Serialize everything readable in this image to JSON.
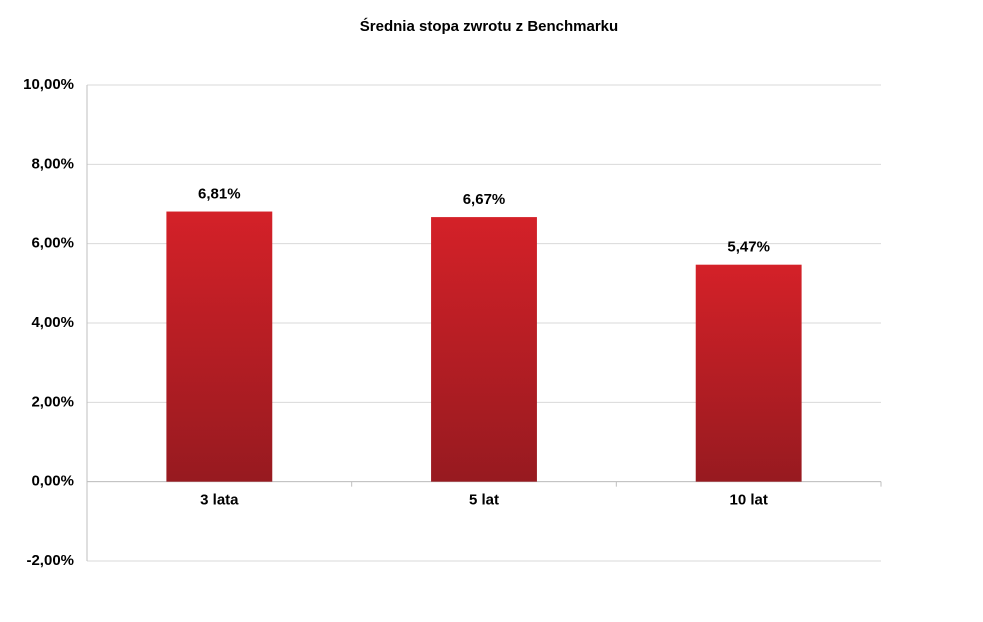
{
  "chart_data": {
    "type": "bar",
    "title": "Średnia stopa zwrotu z Benchmarku",
    "categories": [
      "3 lata",
      "5 lat",
      "10 lat"
    ],
    "values": [
      6.81,
      6.67,
      5.47
    ],
    "value_labels": [
      "6,81%",
      "6,67%",
      "5,47%"
    ],
    "color": "#d42128",
    "ylim": [
      -2,
      10
    ],
    "yticks": [
      {
        "value": -2,
        "label": "-2,00%"
      },
      {
        "value": 0,
        "label": "0,00%"
      },
      {
        "value": 2,
        "label": "2,00%"
      },
      {
        "value": 4,
        "label": "4,00%"
      },
      {
        "value": 6,
        "label": "6,00%"
      },
      {
        "value": 8,
        "label": "8,00%"
      },
      {
        "value": 10,
        "label": "10,00%"
      }
    ],
    "grid": true
  }
}
